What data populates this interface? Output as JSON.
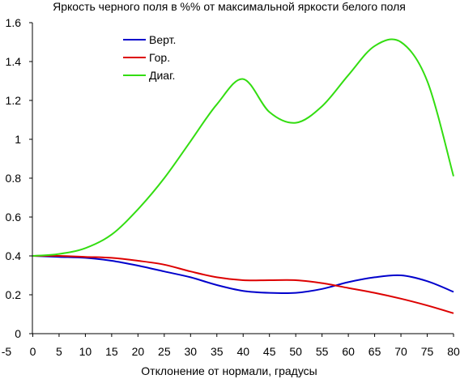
{
  "chart_data": {
    "type": "line",
    "title": "Яркость черного поля в %% от максимальной яркости белого поля",
    "xlabel": "Отклонение от нормали, градусы",
    "ylabel": "",
    "xlim": [
      -5,
      80
    ],
    "ylim": [
      0,
      1.6
    ],
    "grid": false,
    "legend_placement": "top-left",
    "x_ticks": [
      "-5",
      "0",
      "5",
      "10",
      "15",
      "20",
      "25",
      "30",
      "35",
      "40",
      "45",
      "50",
      "55",
      "60",
      "65",
      "70",
      "75",
      "80"
    ],
    "y_ticks": [
      "0",
      "0.2",
      "0.4",
      "0.6",
      "0.8",
      "1",
      "1.2",
      "1.4",
      "1.6"
    ],
    "x": [
      0,
      5,
      10,
      15,
      20,
      25,
      30,
      35,
      40,
      45,
      50,
      55,
      60,
      65,
      70,
      75,
      80
    ],
    "series": [
      {
        "name": "Верт.",
        "color": "#0000cc",
        "values": [
          0.4,
          0.395,
          0.39,
          0.375,
          0.35,
          0.32,
          0.29,
          0.25,
          0.22,
          0.21,
          0.21,
          0.23,
          0.265,
          0.29,
          0.3,
          0.27,
          0.215
        ]
      },
      {
        "name": "Гор.",
        "color": "#dd0000",
        "values": [
          0.4,
          0.4,
          0.395,
          0.39,
          0.375,
          0.355,
          0.32,
          0.29,
          0.275,
          0.275,
          0.275,
          0.26,
          0.235,
          0.21,
          0.18,
          0.145,
          0.105
        ]
      },
      {
        "name": "Диаг.",
        "color": "#33dd11",
        "values": [
          0.4,
          0.41,
          0.44,
          0.51,
          0.64,
          0.8,
          0.99,
          1.18,
          1.31,
          1.14,
          1.085,
          1.17,
          1.33,
          1.48,
          1.5,
          1.3,
          0.81
        ]
      }
    ]
  }
}
